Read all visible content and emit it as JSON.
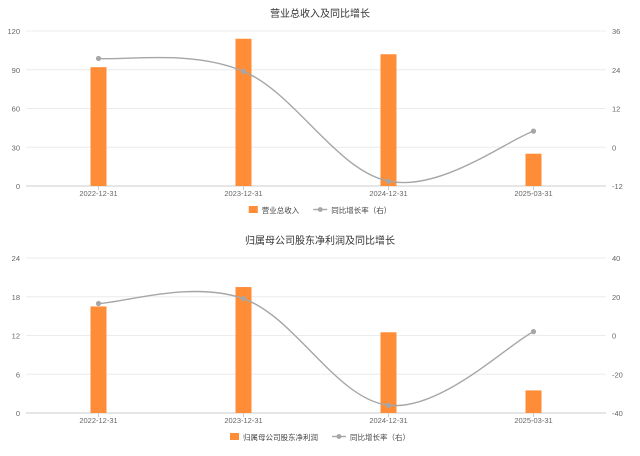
{
  "chart_data": [
    {
      "type": "bar",
      "title": "营业总收入及同比增长",
      "categories": [
        "2022-12-31",
        "2023-12-31",
        "2024-12-31",
        "2025-03-31"
      ],
      "series": [
        {
          "name": "营业总收入",
          "type": "bar",
          "axis": "left",
          "values": [
            92,
            114,
            102,
            25
          ]
        },
        {
          "name": "同比增长率（右）",
          "type": "line",
          "axis": "right",
          "values": [
            27.5,
            23.5,
            -10.5,
            5
          ]
        }
      ],
      "ylim_left": [
        0,
        120
      ],
      "yticks_left": [
        0,
        30,
        60,
        90,
        120
      ],
      "ylim_right": [
        -12,
        36
      ],
      "yticks_right": [
        -12,
        0,
        12,
        24,
        36
      ],
      "grid": true,
      "legend": "bottom"
    },
    {
      "type": "bar",
      "title": "归属母公司股东净利润及同比增长",
      "categories": [
        "2022-12-31",
        "2023-12-31",
        "2024-12-31",
        "2025-03-31"
      ],
      "series": [
        {
          "name": "归属母公司股东净利润",
          "type": "bar",
          "axis": "left",
          "values": [
            16.5,
            19.5,
            12.5,
            3.5
          ]
        },
        {
          "name": "同比增长率（右）",
          "type": "line",
          "axis": "right",
          "values": [
            16.5,
            19,
            -36,
            2
          ]
        }
      ],
      "ylim_left": [
        0,
        24
      ],
      "yticks_left": [
        0,
        6,
        12,
        18,
        24
      ],
      "ylim_right": [
        -40,
        40
      ],
      "yticks_right": [
        -40,
        -20,
        0,
        20,
        40
      ],
      "grid": true,
      "legend": "bottom"
    }
  ],
  "colors": {
    "bar": "#ff8c37",
    "line": "#a6a6a6",
    "grid": "#ececec",
    "axis": "#cccccc"
  }
}
